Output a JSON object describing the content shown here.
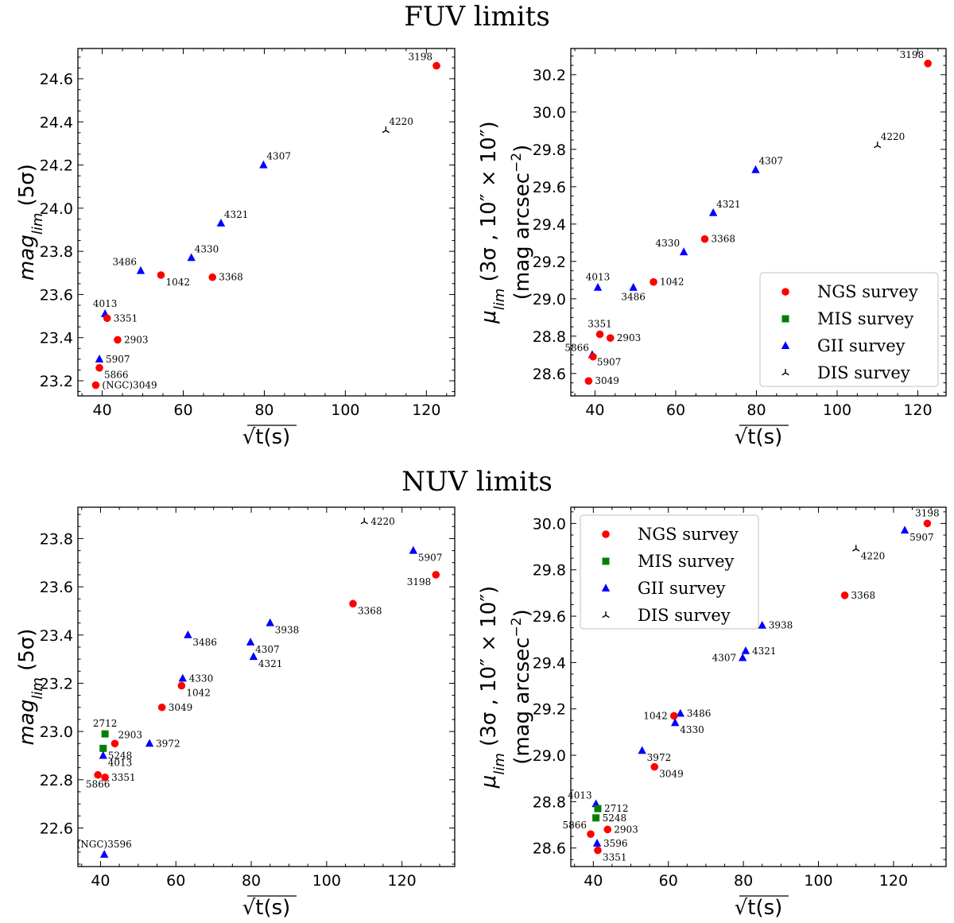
{
  "sections": [
    {
      "title": "FUV limits"
    },
    {
      "title": "NUV limits"
    }
  ],
  "legend_entries": [
    {
      "label": "NGS survey",
      "marker": "circle",
      "color": "#ff0000"
    },
    {
      "label": "MIS survey",
      "marker": "square",
      "color": "#008000"
    },
    {
      "label": "GII survey",
      "marker": "triangle",
      "color": "#0000ff"
    },
    {
      "label": "DIS survey",
      "marker": "tri",
      "color": "#000000"
    }
  ],
  "chart_data": [
    {
      "type": "scatter",
      "panel": "FUV limits - left",
      "xlabel": "√t(s)",
      "ylabel_parts": {
        "main": "mag",
        "sub": "lim",
        "tail": " (5σ)"
      },
      "xlim": [
        34,
        127
      ],
      "ylim": [
        23.13,
        24.74
      ],
      "xticks": [
        40,
        60,
        80,
        100,
        120
      ],
      "yticks": [
        23.2,
        23.4,
        23.6,
        23.8,
        24.0,
        24.2,
        24.4,
        24.6
      ],
      "ytick_labels": [
        "23.2",
        "23.4",
        "23.6",
        "23.8",
        "24.0",
        "24.2",
        "24.4",
        "24.6"
      ],
      "legend": null,
      "points": [
        {
          "survey": "NGS",
          "x": 122.5,
          "y": 24.66,
          "label": "3198",
          "pos": "left-up"
        },
        {
          "survey": "DIS",
          "x": 110.0,
          "y": 24.36,
          "label": "4220",
          "pos": "right-up"
        },
        {
          "survey": "GII",
          "x": 79.8,
          "y": 24.2,
          "label": "4307",
          "pos": "right-up"
        },
        {
          "survey": "GII",
          "x": 69.3,
          "y": 23.93,
          "label": "4321",
          "pos": "right-up"
        },
        {
          "survey": "GII",
          "x": 62.0,
          "y": 23.77,
          "label": "4330",
          "pos": "right-up"
        },
        {
          "survey": "GII",
          "x": 49.5,
          "y": 23.71,
          "label": "3486",
          "pos": "left-up"
        },
        {
          "survey": "NGS",
          "x": 54.5,
          "y": 23.69,
          "label": "1042",
          "pos": "right-down"
        },
        {
          "survey": "NGS",
          "x": 67.2,
          "y": 23.68,
          "label": "3368",
          "pos": "right"
        },
        {
          "survey": "GII",
          "x": 40.7,
          "y": 23.51,
          "label": "4013",
          "pos": "up"
        },
        {
          "survey": "NGS",
          "x": 41.2,
          "y": 23.49,
          "label": "3351",
          "pos": "right"
        },
        {
          "survey": "NGS",
          "x": 43.8,
          "y": 23.39,
          "label": "2903",
          "pos": "right"
        },
        {
          "survey": "GII",
          "x": 39.3,
          "y": 23.3,
          "label": "5907",
          "pos": "right"
        },
        {
          "survey": "NGS",
          "x": 39.3,
          "y": 23.26,
          "label": "5866",
          "pos": "right-down"
        },
        {
          "survey": "NGS",
          "x": 38.4,
          "y": 23.18,
          "label": "(NGC)3049",
          "pos": "right"
        }
      ]
    },
    {
      "type": "scatter",
      "panel": "FUV limits - right",
      "xlabel": "√t(s)",
      "ylabel_parts": {
        "main": "μ",
        "sub": "lim",
        "tail": " (3σ , 10″ × 10″)",
        "line2": "(mag arcsec",
        "line2_sup": "−2",
        "line2_tail": ")"
      },
      "xlim": [
        34,
        127
      ],
      "ylim": [
        28.48,
        30.34
      ],
      "xticks": [
        40,
        60,
        80,
        100,
        120
      ],
      "yticks": [
        28.6,
        28.8,
        29.0,
        29.2,
        29.4,
        29.6,
        29.8,
        30.0,
        30.2
      ],
      "ytick_labels": [
        "28.6",
        "28.8",
        "29.0",
        "29.2",
        "29.4",
        "29.6",
        "29.8",
        "30.0",
        "30.2"
      ],
      "legend": "lower-right",
      "points": [
        {
          "survey": "NGS",
          "x": 122.5,
          "y": 30.26,
          "label": "3198",
          "pos": "left-up"
        },
        {
          "survey": "DIS",
          "x": 110.0,
          "y": 29.82,
          "label": "4220",
          "pos": "right-up"
        },
        {
          "survey": "GII",
          "x": 79.8,
          "y": 29.69,
          "label": "4307",
          "pos": "right-up"
        },
        {
          "survey": "GII",
          "x": 69.3,
          "y": 29.46,
          "label": "4321",
          "pos": "right-up"
        },
        {
          "survey": "NGS",
          "x": 67.2,
          "y": 29.32,
          "label": "3368",
          "pos": "right"
        },
        {
          "survey": "GII",
          "x": 62.0,
          "y": 29.25,
          "label": "4330",
          "pos": "left-up"
        },
        {
          "survey": "NGS",
          "x": 54.5,
          "y": 29.09,
          "label": "1042",
          "pos": "right"
        },
        {
          "survey": "GII",
          "x": 40.7,
          "y": 29.06,
          "label": "4013",
          "pos": "up"
        },
        {
          "survey": "GII",
          "x": 49.5,
          "y": 29.06,
          "label": "3486",
          "pos": "down"
        },
        {
          "survey": "NGS",
          "x": 41.2,
          "y": 28.81,
          "label": "3351",
          "pos": "up"
        },
        {
          "survey": "NGS",
          "x": 43.8,
          "y": 28.79,
          "label": "2903",
          "pos": "right"
        },
        {
          "survey": "GII",
          "x": 39.3,
          "y": 28.7,
          "label": "5907",
          "pos": "right-down"
        },
        {
          "survey": "NGS",
          "x": 39.5,
          "y": 28.69,
          "label": "5866",
          "pos": "left-up"
        },
        {
          "survey": "NGS",
          "x": 38.4,
          "y": 28.56,
          "label": "3049",
          "pos": "right"
        }
      ]
    },
    {
      "type": "scatter",
      "panel": "NUV limits - left",
      "xlabel": "√t(s)",
      "ylabel_parts": {
        "main": "mag",
        "sub": "lim",
        "tail": " (5σ)"
      },
      "xlim": [
        34,
        134
      ],
      "ylim": [
        22.44,
        23.93
      ],
      "xticks": [
        40,
        60,
        80,
        100,
        120
      ],
      "yticks": [
        22.6,
        22.8,
        23.0,
        23.2,
        23.4,
        23.6,
        23.8
      ],
      "ytick_labels": [
        "22.6",
        "22.8",
        "23.0",
        "23.2",
        "23.4",
        "23.6",
        "23.8"
      ],
      "legend": null,
      "points": [
        {
          "survey": "DIS",
          "x": 110.0,
          "y": 23.87,
          "label": "4220",
          "pos": "right"
        },
        {
          "survey": "GII",
          "x": 123.0,
          "y": 23.75,
          "label": "5907",
          "pos": "right-down"
        },
        {
          "survey": "NGS",
          "x": 129.0,
          "y": 23.65,
          "label": "3198",
          "pos": "left-down"
        },
        {
          "survey": "NGS",
          "x": 107.0,
          "y": 23.53,
          "label": "3368",
          "pos": "right-down"
        },
        {
          "survey": "GII",
          "x": 85.0,
          "y": 23.45,
          "label": "3938",
          "pos": "right-down"
        },
        {
          "survey": "GII",
          "x": 63.2,
          "y": 23.4,
          "label": "3486",
          "pos": "right-down"
        },
        {
          "survey": "GII",
          "x": 79.8,
          "y": 23.37,
          "label": "4307",
          "pos": "right-down"
        },
        {
          "survey": "GII",
          "x": 80.6,
          "y": 23.31,
          "label": "4321",
          "pos": "right-down"
        },
        {
          "survey": "GII",
          "x": 61.8,
          "y": 23.22,
          "label": "4330",
          "pos": "right"
        },
        {
          "survey": "NGS",
          "x": 61.5,
          "y": 23.19,
          "label": "1042",
          "pos": "right-down"
        },
        {
          "survey": "NGS",
          "x": 56.3,
          "y": 23.1,
          "label": "3049",
          "pos": "right"
        },
        {
          "survey": "MIS",
          "x": 41.2,
          "y": 22.99,
          "label": "2712",
          "pos": "up"
        },
        {
          "survey": "NGS",
          "x": 43.8,
          "y": 22.95,
          "label": "2903",
          "pos": "right-up"
        },
        {
          "survey": "GII",
          "x": 53.0,
          "y": 22.95,
          "label": "3972",
          "pos": "right"
        },
        {
          "survey": "MIS",
          "x": 40.7,
          "y": 22.93,
          "label": "5248",
          "pos": "right-down"
        },
        {
          "survey": "GII",
          "x": 40.7,
          "y": 22.9,
          "label": "4013",
          "pos": "right-down"
        },
        {
          "survey": "NGS",
          "x": 39.3,
          "y": 22.82,
          "label": "5866",
          "pos": "down"
        },
        {
          "survey": "NGS",
          "x": 41.2,
          "y": 22.81,
          "label": "3351",
          "pos": "right"
        },
        {
          "survey": "GII",
          "x": 41.0,
          "y": 22.49,
          "label": "(NGC)3596",
          "pos": "up"
        }
      ]
    },
    {
      "type": "scatter",
      "panel": "NUV limits - right",
      "xlabel": "√t(s)",
      "ylabel_parts": {
        "main": "μ",
        "sub": "lim",
        "tail": " (3σ , 10″ × 10″)",
        "line2": "(mag arcsec",
        "line2_sup": "−2",
        "line2_tail": ")"
      },
      "xlim": [
        34,
        134
      ],
      "ylim": [
        28.52,
        30.07
      ],
      "xticks": [
        40,
        60,
        80,
        100,
        120
      ],
      "yticks": [
        28.6,
        28.8,
        29.0,
        29.2,
        29.4,
        29.6,
        29.8,
        30.0
      ],
      "ytick_labels": [
        "28.6",
        "28.8",
        "29.0",
        "29.2",
        "29.4",
        "29.6",
        "29.8",
        "30.0"
      ],
      "legend": "upper-left",
      "points": [
        {
          "survey": "NGS",
          "x": 129.0,
          "y": 30.0,
          "label": "3198",
          "pos": "up"
        },
        {
          "survey": "GII",
          "x": 123.0,
          "y": 29.97,
          "label": "5907",
          "pos": "right-down"
        },
        {
          "survey": "DIS",
          "x": 110.0,
          "y": 29.89,
          "label": "4220",
          "pos": "right-down"
        },
        {
          "survey": "NGS",
          "x": 107.0,
          "y": 29.69,
          "label": "3368",
          "pos": "right"
        },
        {
          "survey": "GII",
          "x": 85.0,
          "y": 29.56,
          "label": "3938",
          "pos": "right"
        },
        {
          "survey": "GII",
          "x": 80.6,
          "y": 29.45,
          "label": "4321",
          "pos": "right"
        },
        {
          "survey": "GII",
          "x": 79.8,
          "y": 29.42,
          "label": "4307",
          "pos": "left"
        },
        {
          "survey": "GII",
          "x": 63.2,
          "y": 29.18,
          "label": "3486",
          "pos": "right"
        },
        {
          "survey": "NGS",
          "x": 61.5,
          "y": 29.17,
          "label": "1042",
          "pos": "left"
        },
        {
          "survey": "GII",
          "x": 61.8,
          "y": 29.14,
          "label": "4330",
          "pos": "right-down"
        },
        {
          "survey": "GII",
          "x": 53.0,
          "y": 29.02,
          "label": "3972",
          "pos": "right-down"
        },
        {
          "survey": "NGS",
          "x": 56.3,
          "y": 28.95,
          "label": "3049",
          "pos": "right-down"
        },
        {
          "survey": "GII",
          "x": 40.7,
          "y": 28.79,
          "label": "4013",
          "pos": "left-up"
        },
        {
          "survey": "MIS",
          "x": 41.2,
          "y": 28.77,
          "label": "2712",
          "pos": "right"
        },
        {
          "survey": "MIS",
          "x": 40.7,
          "y": 28.73,
          "label": "5248",
          "pos": "right"
        },
        {
          "survey": "NGS",
          "x": 43.8,
          "y": 28.68,
          "label": "2903",
          "pos": "right"
        },
        {
          "survey": "NGS",
          "x": 39.3,
          "y": 28.66,
          "label": "5866",
          "pos": "left-up"
        },
        {
          "survey": "GII",
          "x": 41.0,
          "y": 28.62,
          "label": "3596",
          "pos": "right"
        },
        {
          "survey": "NGS",
          "x": 41.2,
          "y": 28.59,
          "label": "3351",
          "pos": "right-down"
        }
      ]
    }
  ]
}
